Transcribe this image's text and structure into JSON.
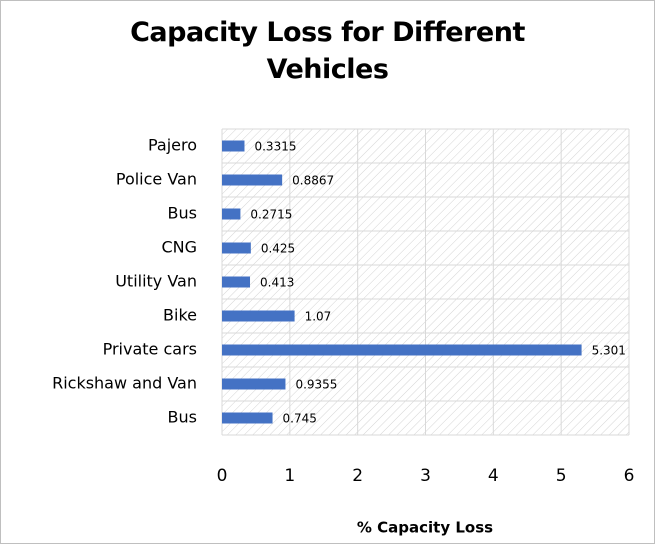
{
  "chart_data": {
    "type": "bar",
    "orientation": "horizontal",
    "title": "Capacity Loss for Different Vehicles",
    "categories": [
      "Pajero",
      "Police Van",
      "Bus",
      "CNG",
      "Utility Van",
      "Bike",
      "Private cars",
      "Rickshaw and Van",
      "Bus"
    ],
    "values": [
      0.3315,
      0.8867,
      0.2715,
      0.425,
      0.413,
      1.07,
      5.301,
      0.9355,
      0.745
    ],
    "color": "#4472c4",
    "xlabel": "% Capacity Loss",
    "xlim": [
      0,
      6
    ],
    "xticks": [
      0,
      1,
      2,
      3,
      4,
      5,
      6
    ],
    "grid": true
  }
}
